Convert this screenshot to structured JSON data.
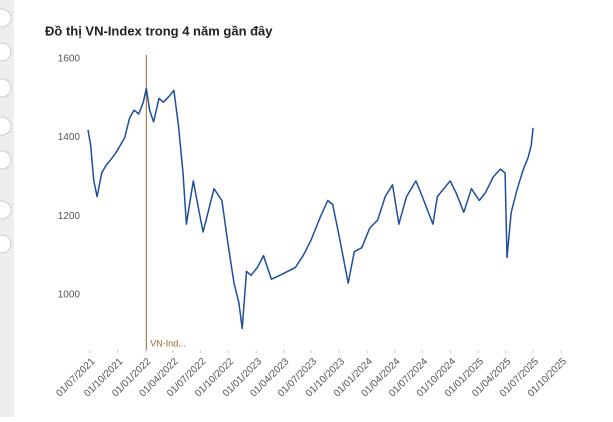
{
  "chart_data": {
    "type": "line",
    "title": "Đồ thị VN-Index trong 4 năm gần đây",
    "xlim": [
      "2021-06-26",
      "2025-10-01"
    ],
    "xticks": [
      {
        "value": "2021-07-01",
        "label": "01/07/2021"
      },
      {
        "value": "2021-10-01",
        "label": "01/10/2021"
      },
      {
        "value": "2022-01-01",
        "label": "01/01/2022"
      },
      {
        "value": "2022-04-01",
        "label": "01/04/2022"
      },
      {
        "value": "2022-07-01",
        "label": "01/07/2022"
      },
      {
        "value": "2022-10-01",
        "label": "01/10/2022"
      },
      {
        "value": "2023-01-01",
        "label": "01/01/2023"
      },
      {
        "value": "2023-04-01",
        "label": "01/04/2023"
      },
      {
        "value": "2023-07-01",
        "label": "01/07/2023"
      },
      {
        "value": "2023-10-01",
        "label": "01/10/2023"
      },
      {
        "value": "2024-01-01",
        "label": "01/01/2024"
      },
      {
        "value": "2024-04-01",
        "label": "01/04/2024"
      },
      {
        "value": "2024-07-01",
        "label": "01/07/2024"
      },
      {
        "value": "2024-10-01",
        "label": "01/10/2024"
      },
      {
        "value": "2025-01-01",
        "label": "01/01/2025"
      },
      {
        "value": "2025-04-01",
        "label": "01/04/2025"
      },
      {
        "value": "2025-07-01",
        "label": "01/07/2025"
      },
      {
        "value": "2025-10-01",
        "label": "01/10/2025"
      }
    ],
    "ylim": [
      860,
      1610
    ],
    "yticks": [
      1000,
      1200,
      1400,
      1600
    ],
    "annotation": {
      "x": "2022-01-04",
      "text": "VN-Ind...",
      "color": "#a0622d"
    },
    "series": [
      {
        "name": "VN-Index",
        "color": "#1f4e9c",
        "x": [
          "2021-06-26",
          "2021-07-05",
          "2021-07-15",
          "2021-07-26",
          "2021-08-10",
          "2021-08-25",
          "2021-09-10",
          "2021-09-25",
          "2021-10-10",
          "2021-10-25",
          "2021-11-10",
          "2021-11-25",
          "2021-12-10",
          "2021-12-25",
          "2022-01-04",
          "2022-01-15",
          "2022-01-28",
          "2022-02-15",
          "2022-03-01",
          "2022-03-20",
          "2022-04-05",
          "2022-04-20",
          "2022-05-05",
          "2022-05-16",
          "2022-06-08",
          "2022-06-30",
          "2022-07-10",
          "2022-08-15",
          "2022-09-10",
          "2022-09-30",
          "2022-10-20",
          "2022-11-05",
          "2022-11-16",
          "2022-11-30",
          "2022-12-15",
          "2023-01-05",
          "2023-01-25",
          "2023-02-20",
          "2023-03-20",
          "2023-04-15",
          "2023-05-10",
          "2023-06-05",
          "2023-07-01",
          "2023-08-01",
          "2023-08-25",
          "2023-09-10",
          "2023-10-01",
          "2023-10-31",
          "2023-11-20",
          "2023-12-15",
          "2024-01-10",
          "2024-02-05",
          "2024-03-01",
          "2024-03-25",
          "2024-04-15",
          "2024-05-10",
          "2024-06-10",
          "2024-07-01",
          "2024-08-05",
          "2024-08-20",
          "2024-09-10",
          "2024-10-01",
          "2024-10-20",
          "2024-11-15",
          "2024-12-10",
          "2025-01-05",
          "2025-01-25",
          "2025-02-20",
          "2025-03-15",
          "2025-03-31",
          "2025-04-06",
          "2025-04-20",
          "2025-05-10",
          "2025-05-30",
          "2025-06-15",
          "2025-06-25",
          "2025-07-01"
        ],
        "values": [
          1420,
          1380,
          1290,
          1250,
          1310,
          1330,
          1345,
          1360,
          1380,
          1400,
          1450,
          1470,
          1460,
          1490,
          1525,
          1470,
          1440,
          1500,
          1490,
          1505,
          1520,
          1430,
          1310,
          1180,
          1290,
          1200,
          1160,
          1270,
          1240,
          1130,
          1030,
          980,
          915,
          1060,
          1050,
          1070,
          1100,
          1040,
          1050,
          1060,
          1070,
          1100,
          1140,
          1200,
          1240,
          1230,
          1150,
          1030,
          1110,
          1120,
          1170,
          1190,
          1250,
          1280,
          1180,
          1250,
          1290,
          1250,
          1180,
          1250,
          1270,
          1290,
          1260,
          1210,
          1270,
          1240,
          1260,
          1300,
          1320,
          1310,
          1095,
          1210,
          1270,
          1320,
          1350,
          1380,
          1425
        ]
      }
    ]
  }
}
